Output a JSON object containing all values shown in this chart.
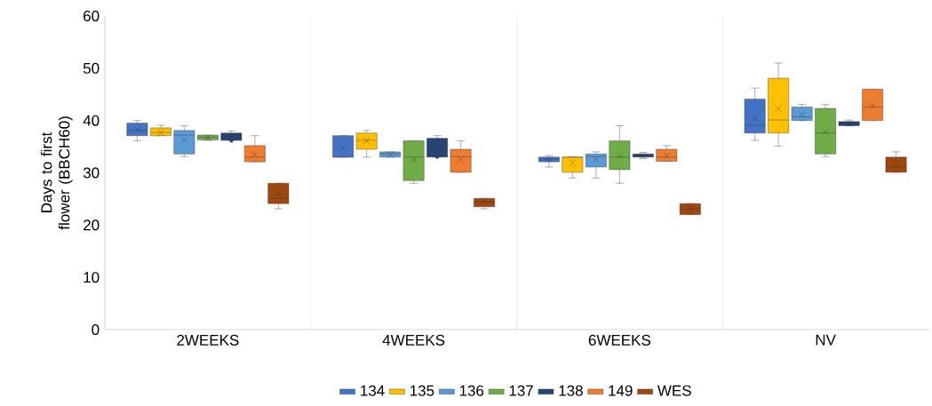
{
  "chart_data": {
    "type": "box",
    "ylabel": "Days to first flower (BBCH60)",
    "categories": [
      "2WEEKS",
      "4WEEKS",
      "6WEEKS",
      "NV"
    ],
    "ylim": [
      0,
      60
    ],
    "yticks": [
      0,
      10,
      20,
      30,
      40,
      50,
      60
    ],
    "grid": "x",
    "legend": "bottom",
    "series": [
      {
        "name": "134",
        "color": "#4472c4",
        "boxes": [
          {
            "low": 36.1,
            "q1": 37.1,
            "median": 38.1,
            "q3": 39.5,
            "high": 40,
            "mean": 38.3
          },
          {
            "low": 33,
            "q1": 33,
            "median": 33,
            "q3": 37.1,
            "high": 37.1,
            "mean": 34.7
          },
          {
            "low": 31.1,
            "q1": 32.1,
            "median": 32.6,
            "q3": 33,
            "high": 33.3,
            "mean": 32.5
          },
          {
            "low": 36.2,
            "q1": 37.6,
            "median": 39.1,
            "q3": 44.1,
            "high": 46.2,
            "mean": 40.4
          }
        ]
      },
      {
        "name": "135",
        "color": "#ffc000",
        "boxes": [
          {
            "low": 37.1,
            "q1": 37.1,
            "median": 37.7,
            "q3": 38.6,
            "high": 39.1,
            "mean": 37.7
          },
          {
            "low": 33,
            "q1": 34.5,
            "median": 36.2,
            "q3": 37.6,
            "high": 38.1,
            "mean": 36.1
          },
          {
            "low": 29,
            "q1": 30.1,
            "median": 33,
            "q3": 33,
            "high": 33,
            "mean": 31.9
          },
          {
            "low": 35.1,
            "q1": 37.6,
            "median": 40.1,
            "q3": 48.1,
            "high": 51,
            "mean": 42.3
          }
        ]
      },
      {
        "name": "136",
        "color": "#5b9bd5",
        "boxes": [
          {
            "low": 33.1,
            "q1": 33.6,
            "median": 37.2,
            "q3": 38.1,
            "high": 39,
            "mean": 36.2
          },
          {
            "low": 33,
            "q1": 33,
            "median": 33.6,
            "q3": 34,
            "high": 34,
            "mean": 33.5
          },
          {
            "low": 29,
            "q1": 31.1,
            "median": 33.1,
            "q3": 33.6,
            "high": 34,
            "mean": 32.6
          },
          {
            "low": 40,
            "q1": 40,
            "median": 40.7,
            "q3": 42.6,
            "high": 43.1,
            "mean": 41.1
          }
        ]
      },
      {
        "name": "137",
        "color": "#70ad47",
        "boxes": [
          {
            "low": 36.2,
            "q1": 36.3,
            "median": 36.8,
            "q3": 37.2,
            "high": 37.2,
            "mean": 36.7
          },
          {
            "low": 28,
            "q1": 28.5,
            "median": 33,
            "q3": 36.1,
            "high": 36.1,
            "mean": 32.5
          },
          {
            "low": 28,
            "q1": 30.6,
            "median": 33,
            "q3": 36.1,
            "high": 39,
            "mean": 33.3
          },
          {
            "low": 33.1,
            "q1": 33.6,
            "median": 37.6,
            "q3": 42.3,
            "high": 43.1,
            "mean": 37.9
          }
        ]
      },
      {
        "name": "138",
        "color": "#264478",
        "boxes": [
          {
            "low": 36.2,
            "q1": 36.2,
            "median": 37,
            "q3": 37.6,
            "high": 38,
            "mean": 36.9,
            "outliers": [
              36.1
            ]
          },
          {
            "low": 33,
            "q1": 33,
            "median": 34.5,
            "q3": 36.6,
            "high": 37.1,
            "mean": 34.5,
            "outliers": [
              36.2,
              33
            ]
          },
          {
            "low": 32.7,
            "q1": 33,
            "median": 33.3,
            "q3": 33.6,
            "high": 33.9,
            "mean": 33.3
          },
          {
            "low": 39,
            "q1": 39,
            "median": 39.4,
            "q3": 39.8,
            "high": 40.1,
            "mean": 39.4
          }
        ]
      },
      {
        "name": "149",
        "color": "#ed7d31",
        "boxes": [
          {
            "low": 32.1,
            "q1": 32.1,
            "median": 33,
            "q3": 35.2,
            "high": 37.1,
            "mean": 33.5
          },
          {
            "low": 30.1,
            "q1": 30.1,
            "median": 33.1,
            "q3": 34.5,
            "high": 36.1,
            "mean": 32.5
          },
          {
            "low": 32.2,
            "q1": 32.2,
            "median": 33,
            "q3": 34.5,
            "high": 35.2,
            "mean": 33.3
          },
          {
            "low": 40,
            "q1": 40,
            "median": 42.6,
            "q3": 46,
            "high": 46,
            "mean": 42.8
          }
        ]
      },
      {
        "name": "WES",
        "color": "#9e480e",
        "boxes": [
          {
            "low": 23.1,
            "q1": 24.1,
            "median": 25.1,
            "q3": 28,
            "high": 28,
            "mean": 26
          },
          {
            "low": 23.1,
            "q1": 23.5,
            "median": 24.4,
            "q3": 25.1,
            "high": 25.1,
            "mean": 24.4
          },
          {
            "low": 22,
            "q1": 22,
            "median": 23.1,
            "q3": 24.1,
            "high": 24.1,
            "mean": 23.1
          },
          {
            "low": 30.1,
            "q1": 30.1,
            "median": 31.1,
            "q3": 33,
            "high": 34,
            "mean": 31.5
          }
        ]
      }
    ]
  }
}
